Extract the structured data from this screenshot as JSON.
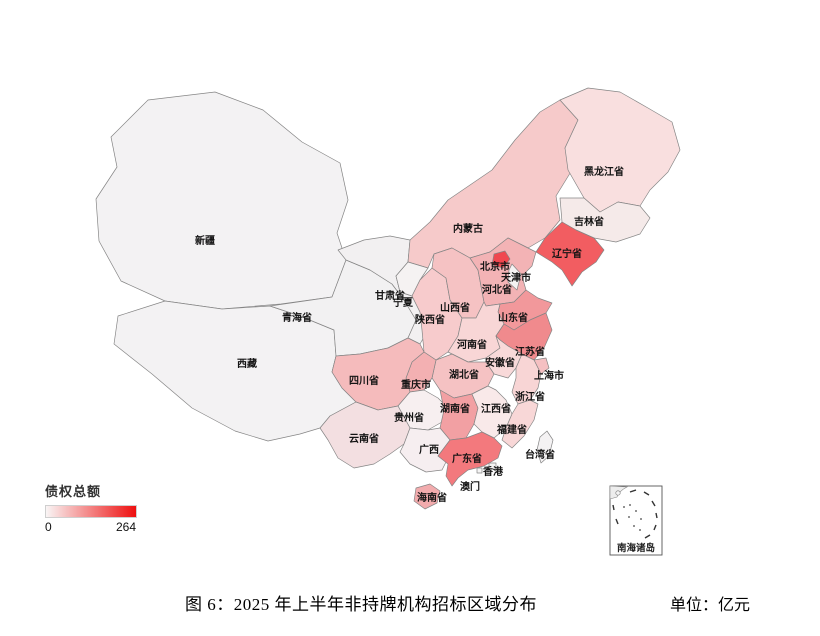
{
  "figure": {
    "caption": "图 6：2025 年上半年非持牌机构招标区域分布",
    "unit_label": "单位：亿元"
  },
  "legend": {
    "title": "债权总额",
    "min_label": "0",
    "max_label": "264",
    "gradient_start": "#f9f5f5",
    "gradient_end": "#ee0f0f"
  },
  "inset": {
    "label": "南海诸岛"
  },
  "map_style": {
    "border_color": "#858585",
    "sea_color": "#ffffff"
  },
  "chart_data": {
    "type": "choropleth",
    "title": "图 6：2025 年上半年非持牌机构招标区域分布",
    "metric": "债权总额",
    "unit": "亿元",
    "scale": {
      "min": 0,
      "max": 264,
      "min_color": "#f9f5f5",
      "max_color": "#ee0f0f"
    },
    "values_estimated_from_color": true,
    "regions": [
      {
        "id": "xinjiang",
        "name": "新疆",
        "value": 3,
        "fill": "#f3f2f3"
      },
      {
        "id": "xizang",
        "name": "西藏",
        "value": 2,
        "fill": "#f3f2f3"
      },
      {
        "id": "qinghai",
        "name": "青海省",
        "value": 2,
        "fill": "#f2f1f2"
      },
      {
        "id": "gansu",
        "name": "甘肃省",
        "value": 6,
        "fill": "#f2f0f1"
      },
      {
        "id": "neimenggu",
        "name": "内蒙古",
        "value": 75,
        "fill": "#f6caca"
      },
      {
        "id": "heilongjiang",
        "name": "黑龙江省",
        "value": 42,
        "fill": "#f9dfdf"
      },
      {
        "id": "jilin",
        "name": "吉林省",
        "value": 25,
        "fill": "#f5eae9"
      },
      {
        "id": "liaoning",
        "name": "辽宁省",
        "value": 264,
        "fill": "#f25d61"
      },
      {
        "id": "ningxia",
        "name": "宁夏",
        "value": 5,
        "fill": "#f5f2f2"
      },
      {
        "id": "shaanxi",
        "name": "陕西省",
        "value": 68,
        "fill": "#f7cbcc"
      },
      {
        "id": "shanxi",
        "name": "山西省",
        "value": 82,
        "fill": "#f5c2c3"
      },
      {
        "id": "hebei",
        "name": "河北省",
        "value": 110,
        "fill": "#f3b3b5"
      },
      {
        "id": "shandong",
        "name": "山东省",
        "value": 148,
        "fill": "#f2989b"
      },
      {
        "id": "henan",
        "name": "河南省",
        "value": 55,
        "fill": "#f8d6d6"
      },
      {
        "id": "jiangsu",
        "name": "江苏省",
        "value": 170,
        "fill": "#f08a8d"
      },
      {
        "id": "anhui",
        "name": "安徽省",
        "value": 50,
        "fill": "#f8d9d9"
      },
      {
        "id": "shanghai",
        "name": "上海市",
        "value": 88,
        "fill": "#f5c0c2"
      },
      {
        "id": "zhejiang",
        "name": "浙江省",
        "value": 58,
        "fill": "#f8d5d5"
      },
      {
        "id": "hubei",
        "name": "湖北省",
        "value": 90,
        "fill": "#f5c2c3"
      },
      {
        "id": "chongqing",
        "name": "重庆市",
        "value": 105,
        "fill": "#f3b0b2"
      },
      {
        "id": "sichuan",
        "name": "四川省",
        "value": 98,
        "fill": "#f5bbbc"
      },
      {
        "id": "guizhou",
        "name": "贵州省",
        "value": 15,
        "fill": "#f7eff0"
      },
      {
        "id": "hunan",
        "name": "湖南省",
        "value": 130,
        "fill": "#f2a0a3"
      },
      {
        "id": "jiangxi",
        "name": "江西省",
        "value": 30,
        "fill": "#f9e9e9"
      },
      {
        "id": "fujian",
        "name": "福建省",
        "value": 56,
        "fill": "#f8d7d7"
      },
      {
        "id": "yunnan",
        "name": "云南省",
        "value": 40,
        "fill": "#f3dfe1"
      },
      {
        "id": "guangxi",
        "name": "广西",
        "value": 16,
        "fill": "#f6eef0"
      },
      {
        "id": "guangdong",
        "name": "广东省",
        "value": 185,
        "fill": "#f3797d"
      },
      {
        "id": "hainan",
        "name": "海南省",
        "value": 118,
        "fill": "#f2abad"
      },
      {
        "id": "taiwan",
        "name": "台湾省",
        "value": 0,
        "fill": "#f4f2f3"
      },
      {
        "id": "beijing",
        "name": "北京市",
        "value": 250,
        "fill": "#f0474f"
      },
      {
        "id": "tianjin",
        "name": "天津市",
        "value": 1,
        "fill": "#f5f3f3"
      },
      {
        "id": "hongkong",
        "name": "香港",
        "value": 0,
        "fill": "#f5f4f4"
      },
      {
        "id": "macau",
        "name": "澳门",
        "value": 0,
        "fill": "#f5f4f4"
      }
    ]
  }
}
